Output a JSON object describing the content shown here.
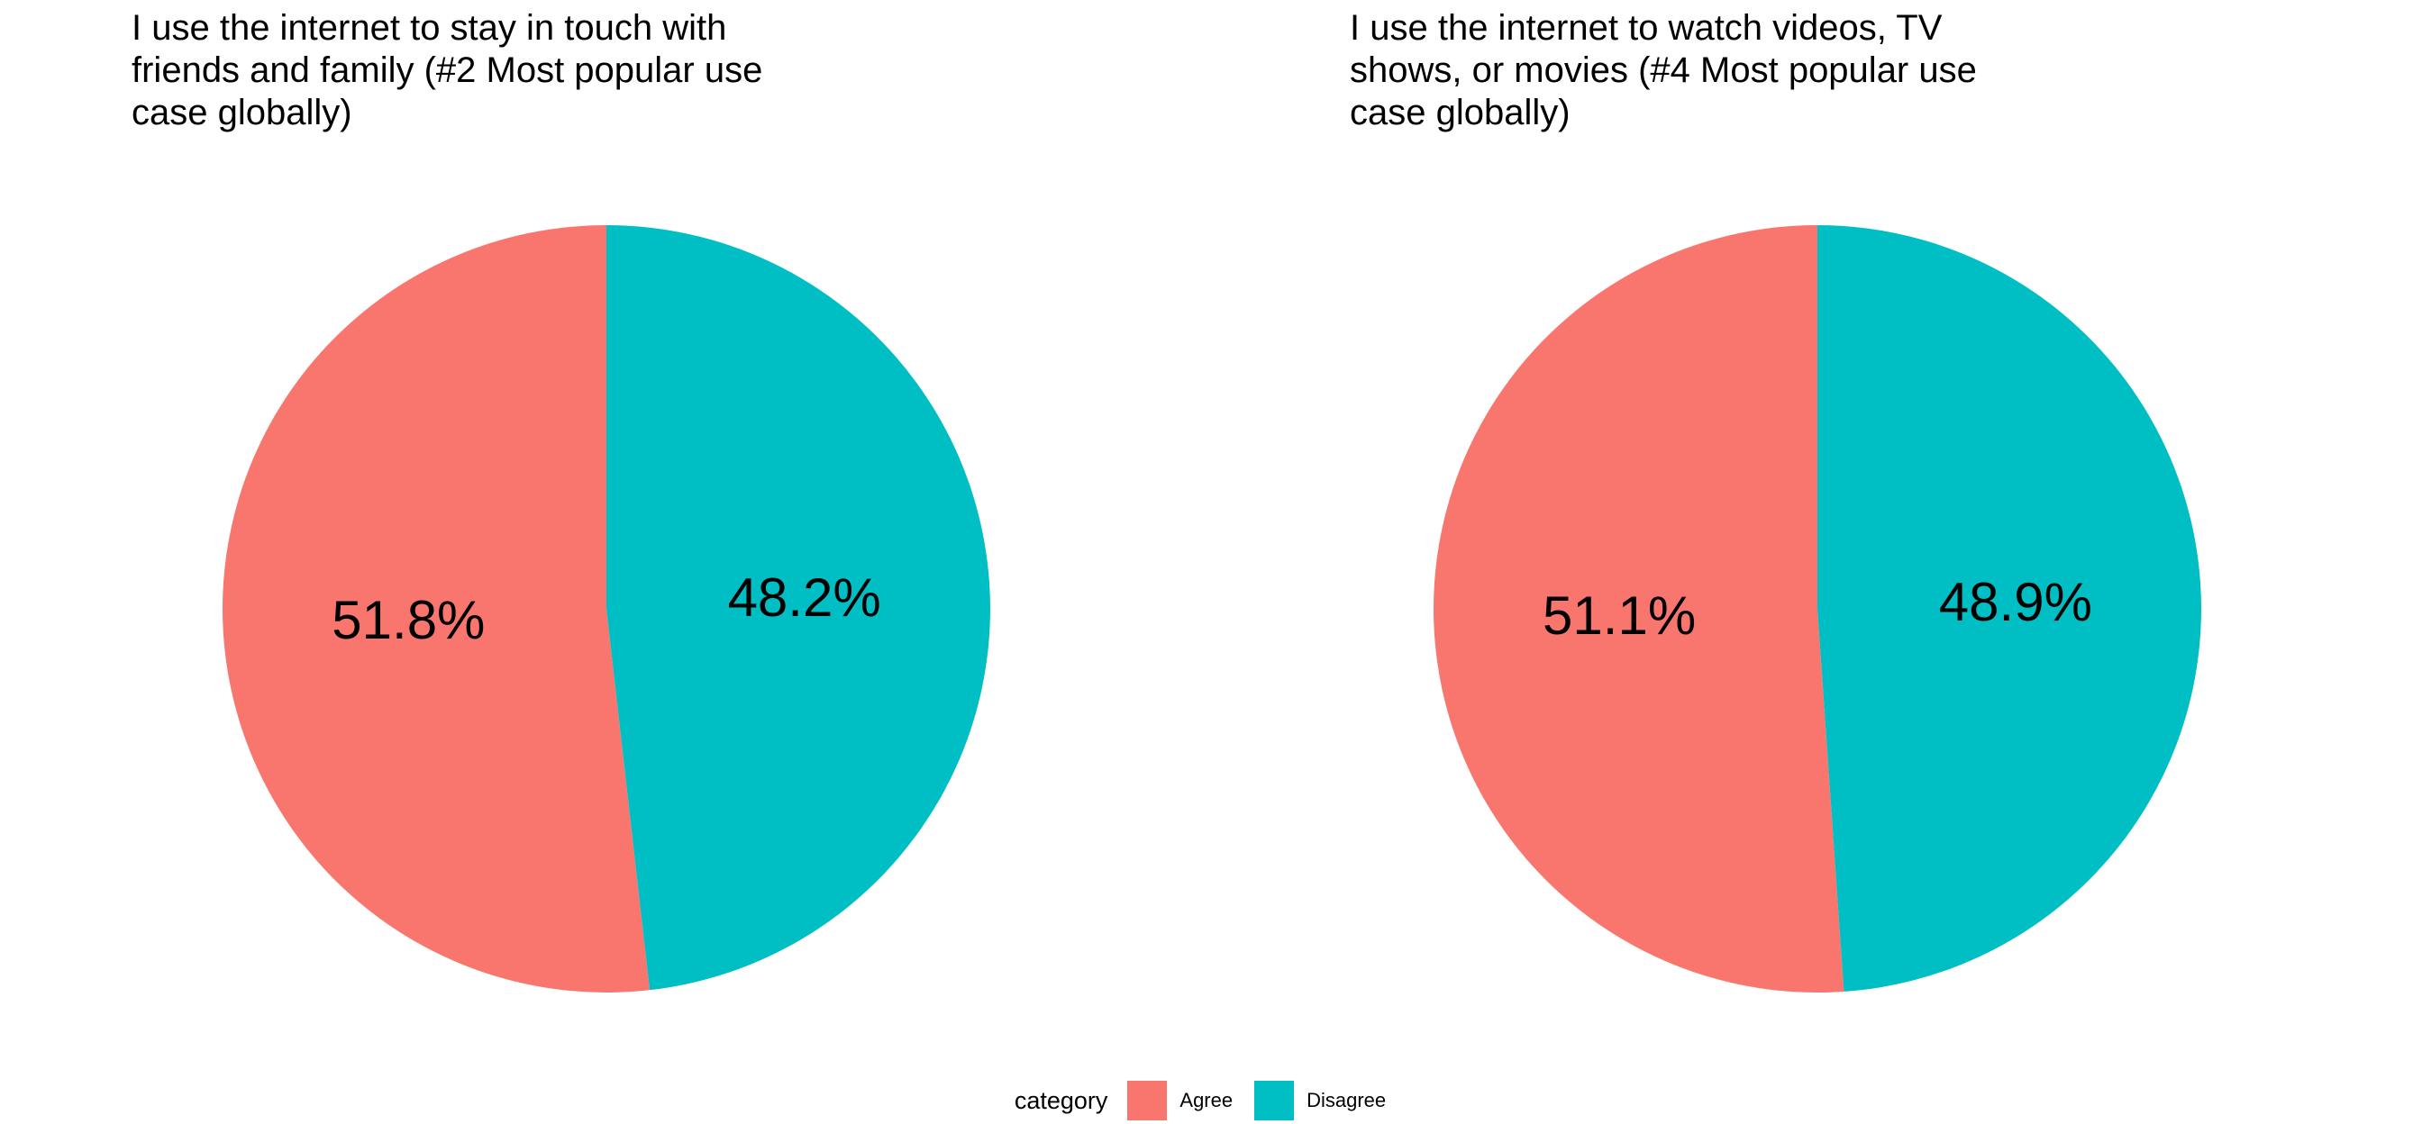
{
  "chart_data": [
    {
      "type": "pie",
      "title": "I use the internet to stay in touch with\nfriends and family (#2 Most popular use\ncase globally)",
      "categories": [
        "Agree",
        "Disagree"
      ],
      "values": [
        51.8,
        48.2
      ],
      "labels": [
        "51.8%",
        "48.2%"
      ],
      "colors": [
        "#F8766D",
        "#00BFC4"
      ]
    },
    {
      "type": "pie",
      "title": "I use the internet to watch videos, TV\nshows, or movies (#4 Most popular use\ncase globally)",
      "categories": [
        "Agree",
        "Disagree"
      ],
      "values": [
        51.1,
        48.9
      ],
      "labels": [
        "51.1%",
        "48.9%"
      ],
      "colors": [
        "#F8766D",
        "#00BFC4"
      ]
    }
  ],
  "legend": {
    "title": "category",
    "placement": "bottom",
    "items": [
      {
        "label": "Agree",
        "color": "#F8766D"
      },
      {
        "label": "Disagree",
        "color": "#00BFC4"
      }
    ]
  }
}
